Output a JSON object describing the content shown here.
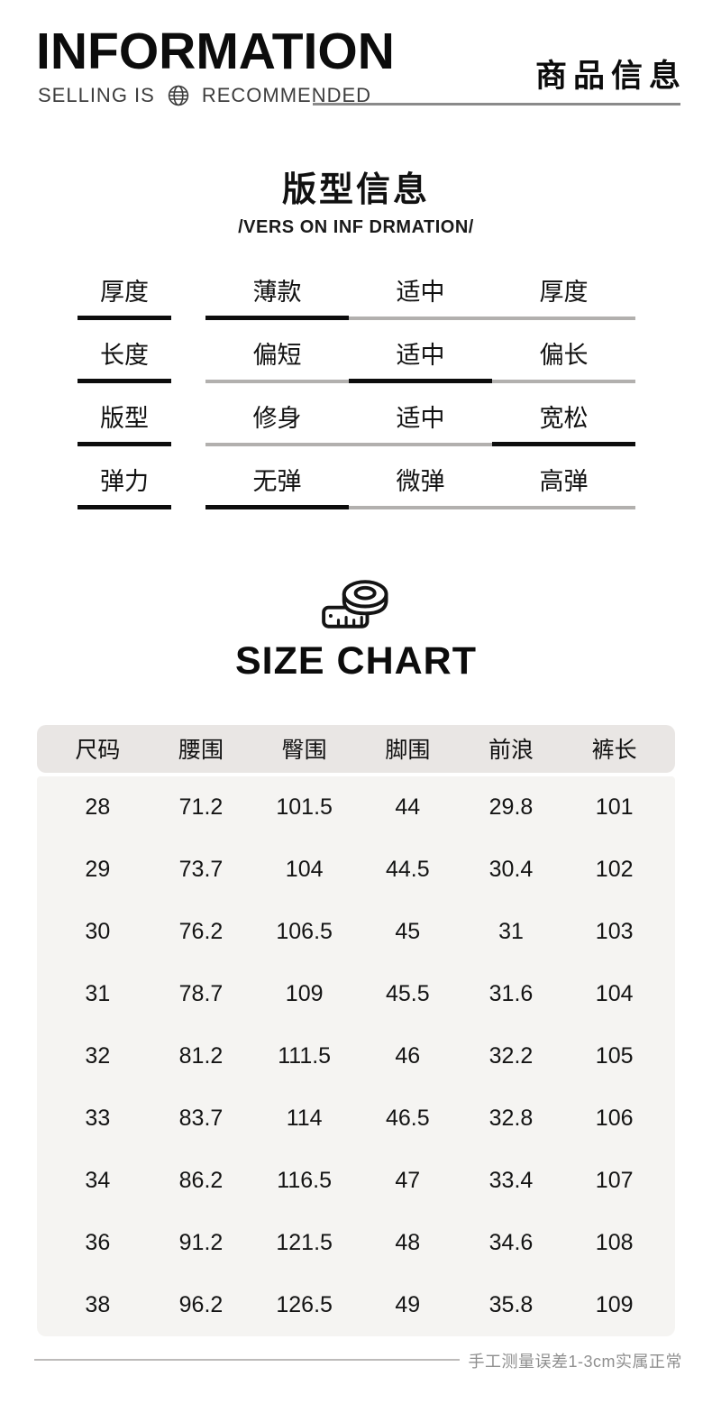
{
  "header": {
    "title": "INFORMATION",
    "subtitle_left": "SELLING IS",
    "subtitle_right": "RECOMMENDED",
    "title_cn": "商品信息"
  },
  "fit_info": {
    "heading": "版型信息",
    "subheading": "/VERS ON INF DRMATION/",
    "rows": [
      {
        "label": "厚度",
        "options": [
          "薄款",
          "适中",
          "厚度"
        ],
        "selected": 0
      },
      {
        "label": "长度",
        "options": [
          "偏短",
          "适中",
          "偏长"
        ],
        "selected": 1
      },
      {
        "label": "版型",
        "options": [
          "修身",
          "适中",
          "宽松"
        ],
        "selected": 2
      },
      {
        "label": "弹力",
        "options": [
          "无弹",
          "微弹",
          "高弹"
        ],
        "selected": 0
      }
    ]
  },
  "size_chart": {
    "heading": "SIZE CHART",
    "icon": "tape-measure-icon",
    "columns": [
      "尺码",
      "腰围",
      "臀围",
      "脚围",
      "前浪",
      "裤长"
    ],
    "rows": [
      [
        "28",
        "71.2",
        "101.5",
        "44",
        "29.8",
        "101"
      ],
      [
        "29",
        "73.7",
        "104",
        "44.5",
        "30.4",
        "102"
      ],
      [
        "30",
        "76.2",
        "106.5",
        "45",
        "31",
        "103"
      ],
      [
        "31",
        "78.7",
        "109",
        "45.5",
        "31.6",
        "104"
      ],
      [
        "32",
        "81.2",
        "111.5",
        "46",
        "32.2",
        "105"
      ],
      [
        "33",
        "83.7",
        "114",
        "46.5",
        "32.8",
        "106"
      ],
      [
        "34",
        "86.2",
        "116.5",
        "47",
        "33.4",
        "107"
      ],
      [
        "36",
        "91.2",
        "121.5",
        "48",
        "34.6",
        "108"
      ],
      [
        "38",
        "96.2",
        "126.5",
        "49",
        "35.8",
        "109"
      ]
    ],
    "footnote": "手工测量误差1-3cm实属正常"
  },
  "colors": {
    "text_black": "#0d0d0d",
    "subtitle_gray": "#3d3d3d",
    "bar_gray": "#b2b0ae",
    "header_rule_gray": "#8a8a8a",
    "table_header_bg": "#e9e6e4",
    "table_body_bg": "#f5f4f2",
    "footnote_gray": "#8f8f8f"
  }
}
